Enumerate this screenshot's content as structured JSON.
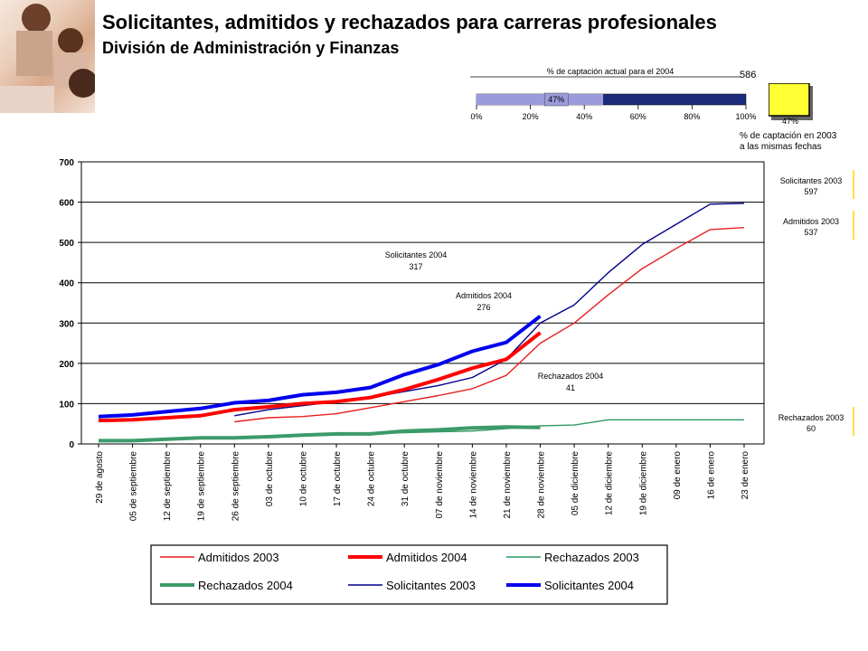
{
  "header": {
    "title": "Solicitantes, admitidos y rechazados para carreras profesionales",
    "subtitle": "División de Administración y Finanzas"
  },
  "gauge": {
    "title": "% de captación actual para el 2004",
    "value_pct": 47,
    "value_label": "47%",
    "ticks": [
      "0%",
      "20%",
      "40%",
      "60%",
      "80%",
      "100%"
    ],
    "count": "586",
    "box_label": "47%",
    "box_color": "#ffff33",
    "caption_line1": "% de captación en 2003",
    "caption_line2": "a las mismas fechas"
  },
  "side_labels": [
    {
      "name": "Solicitantes 2003",
      "value": "597"
    },
    {
      "name": "Admitidos 2003",
      "value": "537"
    },
    {
      "name": "Rechazados 2003",
      "value": "60"
    }
  ],
  "inline_labels": [
    {
      "name": "Solicitantes 2004",
      "value": "317"
    },
    {
      "name": "Admitidos 2004",
      "value": "276"
    },
    {
      "name": "Rechazados 2004",
      "value": "41"
    }
  ],
  "chart_data": {
    "type": "line",
    "ylim": [
      0,
      700
    ],
    "yticks": [
      0,
      100,
      200,
      300,
      400,
      500,
      600,
      700
    ],
    "categories": [
      "29 de agosto",
      "05 de septiembre",
      "12 de septiembre",
      "19 de septiembre",
      "26 de septiembre",
      "03 de octubre",
      "10 de octubre",
      "17 de octubre",
      "24 de octubre",
      "31 de octubre",
      "07 de noviembre",
      "14 de noviembre",
      "21 de noviembre",
      "28 de noviembre",
      "05 de diciembre",
      "12 de diciembre",
      "19 de diciembre",
      "09 de enero",
      "16 de enero",
      "23 de enero"
    ],
    "series": [
      {
        "name": "Admitidos 2003",
        "color": "#e8201e",
        "width": 1.4,
        "values": [
          null,
          null,
          null,
          null,
          55,
          65,
          68,
          75,
          90,
          105,
          120,
          137,
          170,
          250,
          300,
          370,
          435,
          485,
          532,
          537
        ]
      },
      {
        "name": "Admitidos 2004",
        "color": "#ff0000",
        "width": 4,
        "values": [
          58,
          60,
          65,
          70,
          85,
          92,
          100,
          105,
          115,
          135,
          160,
          188,
          210,
          276,
          null,
          null,
          null,
          null,
          null,
          null
        ]
      },
      {
        "name": "Rechazados 2003",
        "color": "#2e9a62",
        "width": 1.4,
        "values": [
          null,
          null,
          null,
          null,
          15,
          18,
          20,
          22,
          25,
          28,
          30,
          32,
          38,
          45,
          47,
          60,
          60,
          60,
          60,
          60
        ]
      },
      {
        "name": "Rechazados 2004",
        "color": "#3c9a6a",
        "width": 4,
        "values": [
          8,
          8,
          12,
          15,
          15,
          18,
          22,
          25,
          25,
          32,
          35,
          40,
          42,
          41,
          null,
          null,
          null,
          null,
          null,
          null
        ]
      },
      {
        "name": "Solicitantes 2003",
        "color": "#00008b",
        "width": 1.4,
        "values": [
          null,
          null,
          null,
          null,
          70,
          85,
          95,
          105,
          115,
          130,
          145,
          165,
          210,
          300,
          345,
          425,
          495,
          545,
          595,
          597
        ]
      },
      {
        "name": "Solicitantes 2004",
        "color": "#0000ee",
        "width": 4,
        "values": [
          68,
          72,
          80,
          88,
          102,
          108,
          122,
          128,
          140,
          172,
          197,
          230,
          252,
          317,
          null,
          null,
          null,
          null,
          null,
          null
        ]
      }
    ],
    "legend_order": [
      "Admitidos 2003",
      "Admitidos 2004",
      "Rechazados 2003",
      "Rechazados 2004",
      "Solicitantes 2003",
      "Solicitantes 2004"
    ]
  }
}
